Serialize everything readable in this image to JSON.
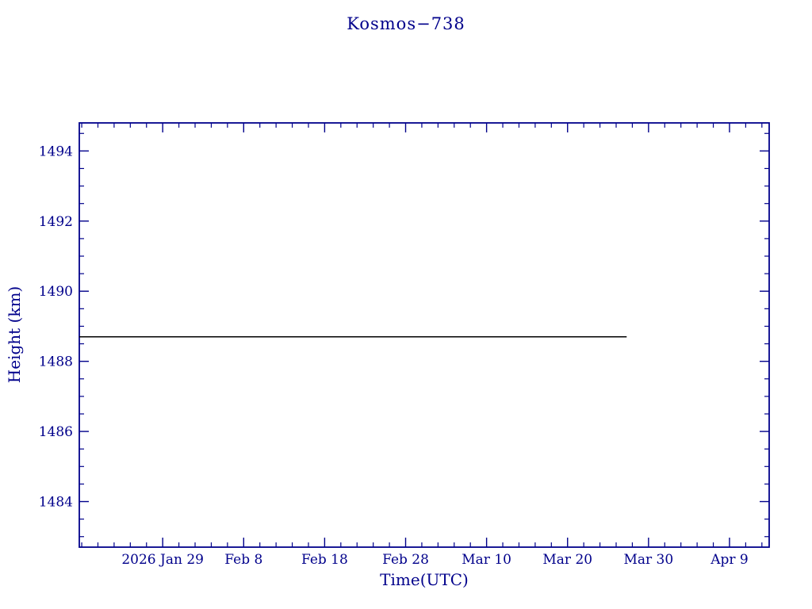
{
  "page": {
    "background_color": "#ffffff",
    "accent_color": "#00008b"
  },
  "chart_data": {
    "type": "line",
    "title": "Kosmos−738",
    "xlabel": "Time(UTC)",
    "ylabel": "Height (km)",
    "axis_color": "#00008b",
    "grid": false,
    "legend": "none",
    "x_reference": "2026 Jan 29",
    "x_axis": {
      "min_days": -10.3,
      "max_days": 74.9,
      "major_tick_days": [
        0,
        10,
        20,
        30,
        40,
        50,
        60,
        70
      ],
      "major_tick_labels": [
        "2026 Jan 29",
        "Feb 8",
        "Feb 18",
        "Feb 28",
        "Mar 10",
        "Mar 20",
        "Mar 30",
        "Apr 9"
      ],
      "minor_tick_step_days": 2
    },
    "y_axis": {
      "min": 1482.7,
      "max": 1494.8,
      "major_ticks": [
        1484,
        1486,
        1488,
        1490,
        1492,
        1494
      ],
      "major_tick_labels": [
        "1484",
        "1486",
        "1488",
        "1490",
        "1492",
        "1494"
      ],
      "minor_tick_step": 0.5
    },
    "series": [
      {
        "name": "height-km",
        "color": "#000000",
        "line_width": 1.5,
        "points": [
          {
            "x_days": -10.3,
            "y_km": 1488.7
          },
          {
            "x_days": 57.3,
            "y_km": 1488.7
          }
        ]
      }
    ]
  }
}
